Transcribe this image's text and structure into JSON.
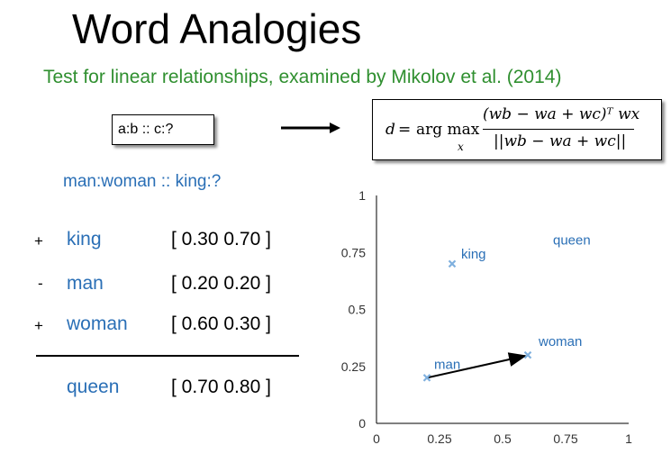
{
  "title": "Word Analogies",
  "subtitle": "Test for linear relationships, examined by Mikolov et al. (2014)",
  "analogy_box": "a:b :: c:?",
  "formula": {
    "lhs": "d",
    "eq": "=",
    "operator": "arg max",
    "subscript": "x",
    "numerator": "(wb − wa + wc)ᵀ wx",
    "denominator": "||wb − wa + wc||"
  },
  "example": "man:woman :: king:?",
  "rows": [
    {
      "sign": "+",
      "word": "king",
      "vector": "[ 0.30 0.70 ]"
    },
    {
      "sign": "-",
      "word": "man",
      "vector": "[ 0.20 0.20 ]"
    },
    {
      "sign": "+",
      "word": "woman",
      "vector": "[ 0.60 0.30 ]"
    }
  ],
  "result": {
    "word": "queen",
    "vector": "[ 0.70 0.80 ]"
  },
  "chart_data": {
    "type": "scatter",
    "xlim": [
      0,
      1
    ],
    "ylim": [
      0,
      1
    ],
    "x_ticks": [
      "0",
      "0.25",
      "0.5",
      "0.75",
      "1"
    ],
    "y_ticks": [
      "0",
      "0.25",
      "0.5",
      "0.75",
      "1"
    ],
    "points": [
      {
        "label": "king",
        "x": 0.3,
        "y": 0.7,
        "marker": true
      },
      {
        "label": "man",
        "x": 0.2,
        "y": 0.2,
        "marker": true
      },
      {
        "label": "woman",
        "x": 0.6,
        "y": 0.3,
        "marker": true
      },
      {
        "label": "queen",
        "x": 0.7,
        "y": 0.8,
        "marker": false
      }
    ],
    "arrow": {
      "from": "man",
      "to": "woman"
    },
    "point_color": "#7fb0de",
    "label_color": "#2a6fb6",
    "grid": false
  },
  "colors": {
    "subtitle": "#2f8f2f",
    "word": "#2a6fb6"
  }
}
